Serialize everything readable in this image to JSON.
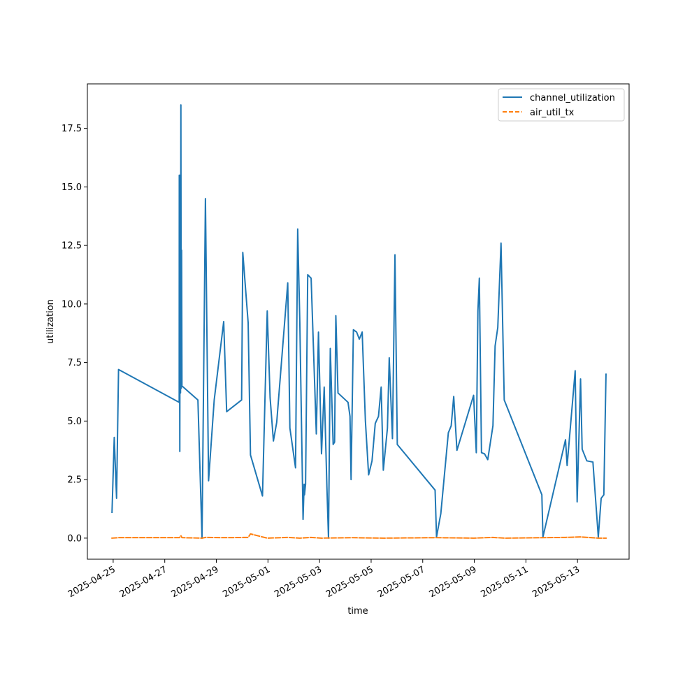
{
  "chart_data": {
    "type": "line",
    "xlabel": "time",
    "ylabel": "utilization",
    "ylim": [
      -0.9,
      19.4
    ],
    "xlim": [
      "2025-04-24T00:00",
      "2025-05-15T00:00"
    ],
    "yticks": [
      0.0,
      2.5,
      5.0,
      7.5,
      10.0,
      12.5,
      15.0,
      17.5
    ],
    "ytick_labels": [
      "0.0",
      "2.5",
      "5.0",
      "7.5",
      "10.0",
      "12.5",
      "15.0",
      "17.5"
    ],
    "xticks": [
      "2025-04-25",
      "2025-04-27",
      "2025-04-29",
      "2025-05-01",
      "2025-05-03",
      "2025-05-05",
      "2025-05-07",
      "2025-05-09",
      "2025-05-11",
      "2025-05-13"
    ],
    "grid": false,
    "legend_position": "top-right",
    "series": [
      {
        "name": "channel_utilization",
        "color": "#1f77b4",
        "style": "solid",
        "points": [
          [
            "2025-04-24T22:55",
            1.1
          ],
          [
            "2025-04-25T01:00",
            4.3
          ],
          [
            "2025-04-25T03:10",
            1.7
          ],
          [
            "2025-04-25T05:00",
            7.2
          ],
          [
            "2025-04-27T13:25",
            5.8
          ],
          [
            "2025-04-27T13:30",
            15.5
          ],
          [
            "2025-04-27T14:00",
            3.7
          ],
          [
            "2025-04-27T14:20",
            15.5
          ],
          [
            "2025-04-27T14:40",
            6.2
          ],
          [
            "2025-04-27T15:00",
            18.5
          ],
          [
            "2025-04-27T15:20",
            6.4
          ],
          [
            "2025-04-27T15:40",
            12.3
          ],
          [
            "2025-04-27T16:00",
            6.5
          ],
          [
            "2025-04-28T06:50",
            5.9
          ],
          [
            "2025-04-28T10:40",
            0.0
          ],
          [
            "2025-04-28T13:50",
            14.5
          ],
          [
            "2025-04-28T16:45",
            2.45
          ],
          [
            "2025-04-28T22:00",
            5.9
          ],
          [
            "2025-04-29T06:50",
            9.25
          ],
          [
            "2025-04-29T09:35",
            5.4
          ],
          [
            "2025-04-29T23:30",
            5.9
          ],
          [
            "2025-04-30T00:35",
            12.2
          ],
          [
            "2025-04-30T05:35",
            9.2
          ],
          [
            "2025-04-30T07:45",
            3.55
          ],
          [
            "2025-04-30T18:55",
            1.8
          ],
          [
            "2025-04-30T23:20",
            9.7
          ],
          [
            "2025-05-01T02:00",
            6.0
          ],
          [
            "2025-05-01T05:05",
            4.15
          ],
          [
            "2025-05-01T08:10",
            4.95
          ],
          [
            "2025-05-01T18:25",
            10.9
          ],
          [
            "2025-05-01T20:25",
            4.7
          ],
          [
            "2025-05-02T01:40",
            3.0
          ],
          [
            "2025-05-02T03:40",
            13.2
          ],
          [
            "2025-05-02T05:40",
            9.2
          ],
          [
            "2025-05-02T08:40",
            0.8
          ],
          [
            "2025-05-02T09:40",
            2.3
          ],
          [
            "2025-05-02T10:00",
            1.85
          ],
          [
            "2025-05-02T11:00",
            2.3
          ],
          [
            "2025-05-02T13:00",
            11.25
          ],
          [
            "2025-05-02T16:10",
            11.1
          ],
          [
            "2025-05-02T21:00",
            4.45
          ],
          [
            "2025-05-02T23:00",
            8.8
          ],
          [
            "2025-05-03T01:50",
            3.6
          ],
          [
            "2025-05-03T04:20",
            6.45
          ],
          [
            "2025-05-03T06:50",
            2.2
          ],
          [
            "2025-05-03T08:20",
            0.0
          ],
          [
            "2025-05-03T10:00",
            8.1
          ],
          [
            "2025-05-03T12:40",
            4.0
          ],
          [
            "2025-05-03T14:00",
            4.1
          ],
          [
            "2025-05-03T15:10",
            9.5
          ],
          [
            "2025-05-03T17:10",
            6.2
          ],
          [
            "2025-05-04T02:30",
            5.8
          ],
          [
            "2025-05-04T04:20",
            5.2
          ],
          [
            "2025-05-04T05:20",
            2.5
          ],
          [
            "2025-05-04T07:30",
            8.9
          ],
          [
            "2025-05-04T10:30",
            8.8
          ],
          [
            "2025-05-04T13:00",
            8.5
          ],
          [
            "2025-05-04T15:40",
            8.8
          ],
          [
            "2025-05-04T18:40",
            5.0
          ],
          [
            "2025-05-04T21:40",
            2.7
          ],
          [
            "2025-05-05T00:50",
            3.3
          ],
          [
            "2025-05-05T03:50",
            4.9
          ],
          [
            "2025-05-05T06:50",
            5.2
          ],
          [
            "2025-05-05T09:20",
            6.45
          ],
          [
            "2025-05-05T11:20",
            2.9
          ],
          [
            "2025-05-05T15:10",
            4.7
          ],
          [
            "2025-05-05T16:50",
            7.7
          ],
          [
            "2025-05-05T19:50",
            4.25
          ],
          [
            "2025-05-05T22:10",
            12.1
          ],
          [
            "2025-05-06T00:20",
            4.0
          ],
          [
            "2025-05-07T11:30",
            2.05
          ],
          [
            "2025-05-07T12:50",
            0.05
          ],
          [
            "2025-05-07T16:50",
            1.05
          ],
          [
            "2025-05-07T23:50",
            4.5
          ],
          [
            "2025-05-08T02:30",
            4.8
          ],
          [
            "2025-05-08T04:50",
            6.05
          ],
          [
            "2025-05-08T07:50",
            3.75
          ],
          [
            "2025-05-08T23:20",
            6.1
          ],
          [
            "2025-05-09T01:50",
            3.65
          ],
          [
            "2025-05-09T03:20",
            9.7
          ],
          [
            "2025-05-09T04:40",
            11.1
          ],
          [
            "2025-05-09T06:40",
            3.65
          ],
          [
            "2025-05-09T09:30",
            3.6
          ],
          [
            "2025-05-09T12:30",
            3.35
          ],
          [
            "2025-05-09T17:20",
            4.8
          ],
          [
            "2025-05-09T19:20",
            8.2
          ],
          [
            "2025-05-09T21:50",
            9.0
          ],
          [
            "2025-05-10T00:50",
            12.6
          ],
          [
            "2025-05-10T03:50",
            5.9
          ],
          [
            "2025-05-11T14:50",
            1.85
          ],
          [
            "2025-05-11T15:50",
            0.05
          ],
          [
            "2025-05-12T12:50",
            4.2
          ],
          [
            "2025-05-12T14:20",
            3.1
          ],
          [
            "2025-05-12T21:50",
            7.15
          ],
          [
            "2025-05-12T23:40",
            1.55
          ],
          [
            "2025-05-13T02:50",
            6.8
          ],
          [
            "2025-05-13T04:20",
            3.8
          ],
          [
            "2025-05-13T08:40",
            3.3
          ],
          [
            "2025-05-13T14:20",
            3.25
          ],
          [
            "2025-05-13T19:20",
            0.05
          ],
          [
            "2025-05-13T22:00",
            1.7
          ],
          [
            "2025-05-14T00:30",
            1.85
          ],
          [
            "2025-05-14T02:30",
            7.0
          ]
        ]
      },
      {
        "name": "air_util_tx",
        "color": "#ff7f0e",
        "style": "dashed",
        "points": [
          [
            "2025-04-24T22:55",
            0.0
          ],
          [
            "2025-04-25T05:00",
            0.02
          ],
          [
            "2025-04-27T13:30",
            0.02
          ],
          [
            "2025-04-27T15:00",
            0.1
          ],
          [
            "2025-04-27T16:00",
            0.02
          ],
          [
            "2025-04-28T10:40",
            0.0
          ],
          [
            "2025-04-28T13:50",
            0.03
          ],
          [
            "2025-04-29T09:35",
            0.02
          ],
          [
            "2025-04-30T05:35",
            0.03
          ],
          [
            "2025-04-30T07:45",
            0.18
          ],
          [
            "2025-04-30T18:55",
            0.05
          ],
          [
            "2025-04-30T23:20",
            0.0
          ],
          [
            "2025-05-01T18:25",
            0.03
          ],
          [
            "2025-05-02T05:40",
            0.0
          ],
          [
            "2025-05-02T16:10",
            0.03
          ],
          [
            "2025-05-03T01:50",
            0.0
          ],
          [
            "2025-05-04T05:20",
            0.02
          ],
          [
            "2025-05-05T11:20",
            0.0
          ],
          [
            "2025-05-07T11:30",
            0.02
          ],
          [
            "2025-05-08T23:20",
            0.0
          ],
          [
            "2025-05-09T17:20",
            0.03
          ],
          [
            "2025-05-10T03:50",
            0.0
          ],
          [
            "2025-05-12T12:50",
            0.03
          ],
          [
            "2025-05-13T02:50",
            0.05
          ],
          [
            "2025-05-13T19:20",
            0.0
          ],
          [
            "2025-05-14T02:30",
            0.0
          ]
        ]
      }
    ]
  }
}
